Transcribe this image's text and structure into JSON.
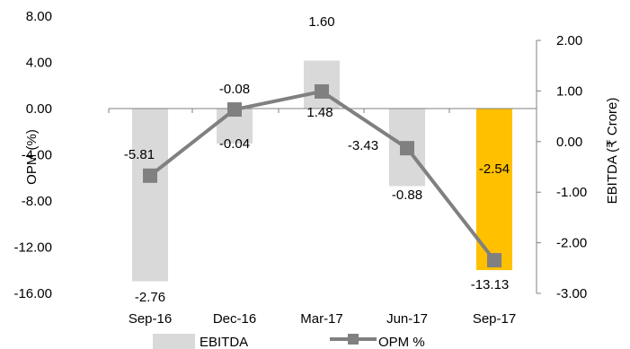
{
  "chart_data": {
    "type": "bar+line",
    "categories": [
      "Sep-16",
      "Dec-16",
      "Mar-17",
      "Jun-17",
      "Sep-17"
    ],
    "series": [
      {
        "name": "EBITDA",
        "type": "bar",
        "axis": "right",
        "values": [
          -2.76,
          -0.04,
          1.6,
          -0.88,
          -2.54
        ],
        "labels": [
          "-2.76",
          "-0.04",
          "1.60",
          "-0.88",
          "-2.54"
        ],
        "colors": [
          "#d9d9d9",
          "#d9d9d9",
          "#d9d9d9",
          "#d9d9d9",
          "#ffc000"
        ]
      },
      {
        "name": "OPM %",
        "type": "line",
        "axis": "left",
        "values": [
          -5.81,
          -0.08,
          1.48,
          -3.43,
          -13.13
        ],
        "labels": [
          "-5.81",
          "-0.08",
          "1.48",
          "-3.43",
          "-13.13"
        ],
        "color": "#808080",
        "marker": "square"
      }
    ],
    "left_axis": {
      "label": "OPM (%)",
      "ticks": [
        "8.00",
        "4.00",
        "0.00",
        "-4.00",
        "-8.00",
        "-12.00",
        "-16.00"
      ],
      "range": [
        -16,
        8
      ]
    },
    "right_axis": {
      "label": "EBITDA (₹ Crore)",
      "ticks": [
        "2.00",
        "1.00",
        "0.00",
        "-1.00",
        "-2.00",
        "-3.00"
      ],
      "range": [
        -3,
        2
      ]
    },
    "legend": {
      "position": "bottom",
      "items": [
        "EBITDA",
        "OPM %"
      ]
    },
    "grid": false
  }
}
